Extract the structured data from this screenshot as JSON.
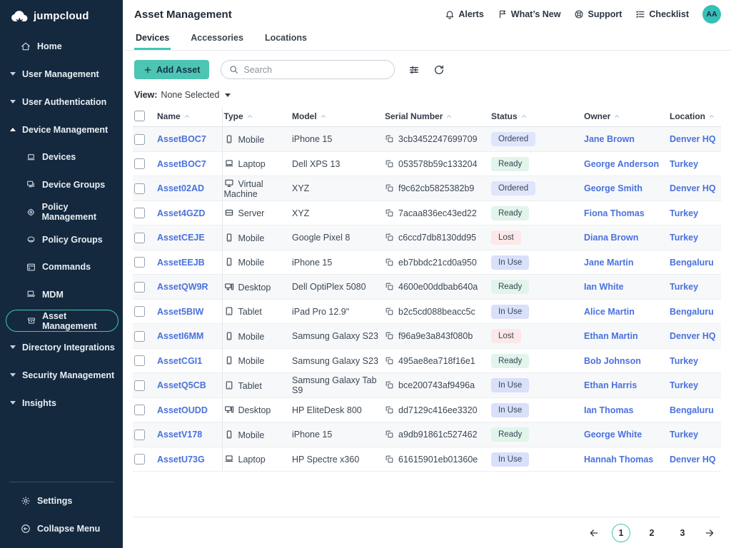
{
  "sidebar": {
    "logo_text": "jumpcloud",
    "home": "Home",
    "groups": [
      "User Management",
      "User Authentication",
      "Device Management"
    ],
    "device_submenu": [
      "Devices",
      "Device Groups",
      "Policy Management",
      "Policy Groups",
      "Commands",
      "MDM",
      "Asset Management"
    ],
    "more_groups": [
      "Directory Integrations",
      "Security Management",
      "Insights"
    ],
    "footer": [
      "Settings",
      "Collapse Menu"
    ]
  },
  "header": {
    "title": "Asset Management",
    "nav": {
      "alerts": "Alerts",
      "whats_new": "What’s New",
      "support": "Support",
      "checklist": "Checklist"
    },
    "avatar_initials": "AA"
  },
  "tabs": [
    {
      "label": "Devices"
    },
    {
      "label": "Accessories"
    },
    {
      "label": "Locations"
    }
  ],
  "toolbar": {
    "add_asset_label": "Add Asset",
    "search_placeholder": "Search"
  },
  "viewbar": {
    "label": "View:",
    "value": "None Selected"
  },
  "table": {
    "columns": [
      "Name",
      "Type",
      "Model",
      "Serial Number",
      "Status",
      "Owner",
      "Location"
    ],
    "type_icons": {
      "Mobile": "mobile",
      "Laptop": "laptop",
      "Virtual Machine": "monitor",
      "Server": "server",
      "Desktop": "desktop",
      "Tablet": "tablet"
    },
    "status_styles": {
      "Ordered": "#dfe5fb",
      "Ready": "#e1f5eb",
      "Lost": "#fce8e8",
      "In Use": "#d8e0fa"
    },
    "rows": [
      {
        "name": "AssetBOC7",
        "type": "Mobile",
        "model": "iPhone 15",
        "serial": "3cb3452247699709",
        "status": "Ordered",
        "owner": "Jane Brown",
        "location": "Denver HQ"
      },
      {
        "name": "AssetBOC7",
        "type": "Laptop",
        "model": "Dell XPS 13",
        "serial": "053578b59c133204",
        "status": "Ready",
        "owner": "George Anderson",
        "location": "Turkey"
      },
      {
        "name": "Asset02AD",
        "type": "Virtual Machine",
        "model": "XYZ",
        "serial": "f9c62cb5825382b9",
        "status": "Ordered",
        "owner": "George Smith",
        "location": "Denver HQ"
      },
      {
        "name": "Asset4GZD",
        "type": "Server",
        "model": "XYZ",
        "serial": "7acaa836ec43ed22",
        "status": "Ready",
        "owner": "Fiona Thomas",
        "location": "Turkey"
      },
      {
        "name": "AssetCEJE",
        "type": "Mobile",
        "model": "Google Pixel 8",
        "serial": "c6ccd7db8130dd95",
        "status": "Lost",
        "owner": "Diana Brown",
        "location": "Turkey"
      },
      {
        "name": "AssetEEJB",
        "type": "Mobile",
        "model": "iPhone 15",
        "serial": "eb7bbdc21cd0a950",
        "status": "In Use",
        "owner": "Jane Martin",
        "location": "Bengaluru"
      },
      {
        "name": "AssetQW9R",
        "type": "Desktop",
        "model": "Dell OptiPlex 5080",
        "serial": "4600e00ddbab640a",
        "status": "Ready",
        "owner": "Ian White",
        "location": "Turkey"
      },
      {
        "name": "Asset5BIW",
        "type": "Tablet",
        "model": "iPad Pro 12.9\"",
        "serial": "b2c5cd088beacc5c",
        "status": "In Use",
        "owner": "Alice Martin",
        "location": "Bengaluru"
      },
      {
        "name": "AssetI6MM",
        "type": "Mobile",
        "model": "Samsung Galaxy S23",
        "serial": "f96a9e3a843f080b",
        "status": "Lost",
        "owner": "Ethan Martin",
        "location": "Denver HQ"
      },
      {
        "name": "AssetCGI1",
        "type": "Mobile",
        "model": "Samsung Galaxy S23",
        "serial": "495ae8ea718f16e1",
        "status": "Ready",
        "owner": "Bob Johnson",
        "location": "Turkey"
      },
      {
        "name": "AssetQ5CB",
        "type": "Tablet",
        "model": "Samsung Galaxy Tab S9",
        "serial": "bce200743af9496a",
        "status": "In Use",
        "owner": "Ethan Harris",
        "location": "Turkey"
      },
      {
        "name": "AssetOUDD",
        "type": "Desktop",
        "model": "HP EliteDesk 800",
        "serial": "dd7129c416ee3320",
        "status": "In Use",
        "owner": "Ian Thomas",
        "location": "Bengaluru"
      },
      {
        "name": "AssetV178",
        "type": "Mobile",
        "model": "iPhone 15",
        "serial": "a9db91861c527462",
        "status": "Ready",
        "owner": "George White",
        "location": "Turkey"
      },
      {
        "name": "AssetU73G",
        "type": "Laptop",
        "model": "HP Spectre x360",
        "serial": "61615901eb01360e",
        "status": "In Use",
        "owner": "Hannah Thomas",
        "location": "Denver HQ"
      }
    ]
  },
  "pagination": {
    "pages": [
      "1",
      "2",
      "3"
    ],
    "current": "1"
  }
}
